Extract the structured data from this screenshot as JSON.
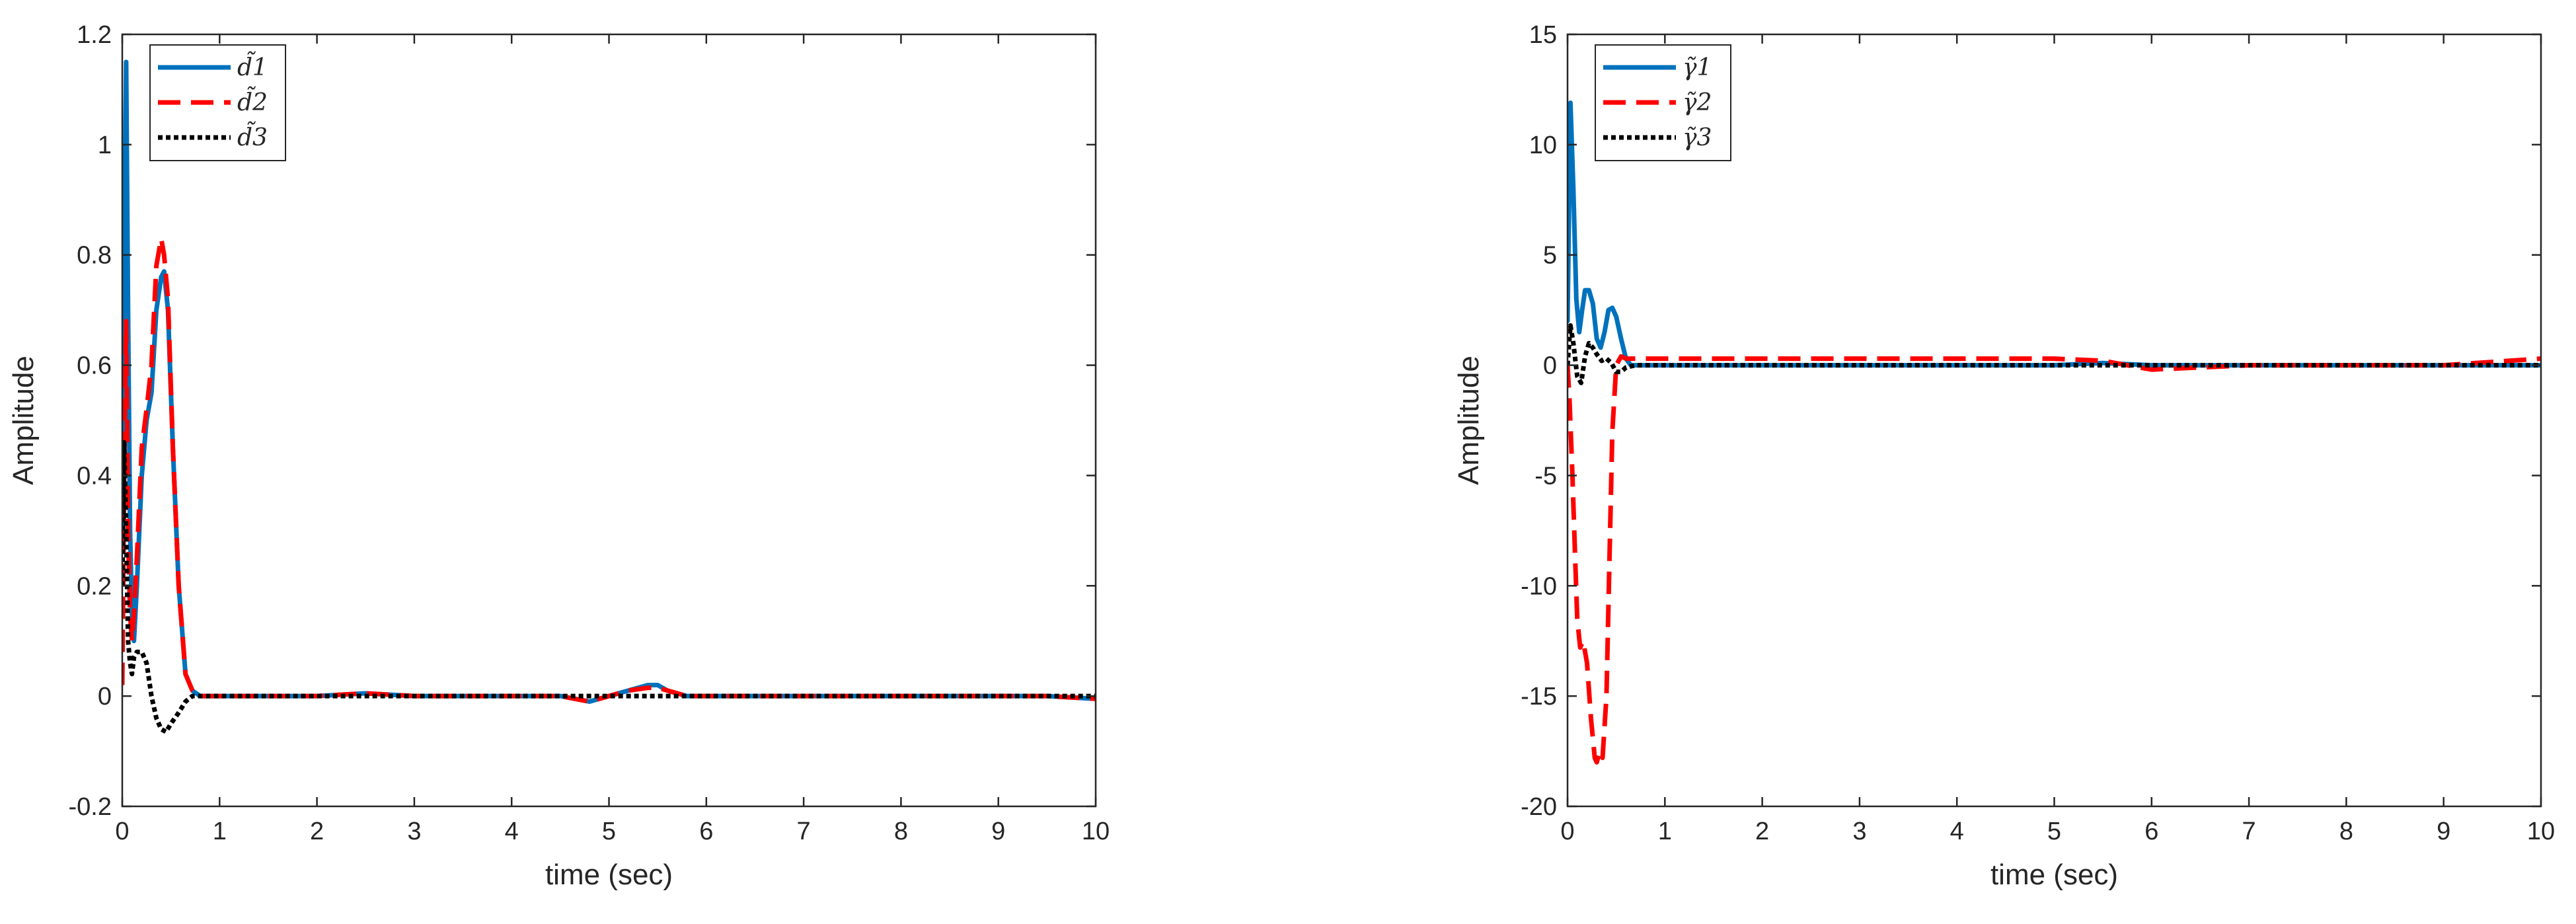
{
  "chart_data": [
    {
      "type": "line",
      "xlabel": "time (sec)",
      "ylabel": "Amplitude",
      "xlim": [
        0,
        10
      ],
      "ylim": [
        -0.2,
        1.2
      ],
      "xticks": [
        0,
        1,
        2,
        3,
        4,
        5,
        6,
        7,
        8,
        9,
        10
      ],
      "xtick_labels": [
        "0",
        "1",
        "2",
        "3",
        "4",
        "5",
        "6",
        "7",
        "8",
        "9",
        "10"
      ],
      "yticks": [
        -0.2,
        0,
        0.2,
        0.4,
        0.6,
        0.8,
        1,
        1.2
      ],
      "ytick_labels": [
        "-0.2",
        "0",
        "0.2",
        "0.4",
        "0.6",
        "0.8",
        "1",
        "1.2"
      ],
      "grid": false,
      "legend_position": "top-left",
      "series": [
        {
          "name": "d̃1",
          "color": "#0072BD",
          "style": "solid",
          "x": [
            0,
            0.02,
            0.04,
            0.06,
            0.08,
            0.1,
            0.12,
            0.15,
            0.2,
            0.25,
            0.3,
            0.35,
            0.4,
            0.43,
            0.47,
            0.52,
            0.58,
            0.65,
            0.72,
            0.8,
            1,
            1.5,
            2,
            2.5,
            3,
            3.5,
            4,
            4.5,
            4.8,
            5.0,
            5.2,
            5.4,
            5.5,
            5.6,
            5.8,
            6,
            6.5,
            7,
            7.5,
            8,
            8.5,
            9,
            9.5,
            10
          ],
          "y": [
            0.3,
            0.8,
            1.15,
            0.7,
            0.3,
            0.15,
            0.1,
            0.2,
            0.4,
            0.5,
            0.55,
            0.7,
            0.76,
            0.77,
            0.7,
            0.45,
            0.2,
            0.04,
            0.01,
            0.0,
            0.0,
            0.0,
            0.0,
            0.005,
            0.0,
            0.0,
            0.0,
            0.0,
            -0.01,
            0.0,
            0.01,
            0.02,
            0.02,
            0.01,
            0.0,
            0.0,
            0.0,
            0.0,
            0.0,
            0.0,
            0.0,
            0.0,
            0.0,
            -0.005
          ]
        },
        {
          "name": "d̃2",
          "color": "#FF0000",
          "style": "dashed",
          "x": [
            0,
            0.02,
            0.04,
            0.06,
            0.08,
            0.1,
            0.12,
            0.15,
            0.2,
            0.25,
            0.3,
            0.35,
            0.4,
            0.43,
            0.47,
            0.52,
            0.58,
            0.65,
            0.72,
            0.8,
            1,
            1.5,
            2,
            2.5,
            3,
            3.5,
            4,
            4.5,
            4.8,
            5.0,
            5.2,
            5.4,
            5.5,
            5.6,
            5.8,
            6,
            6.5,
            7,
            7.5,
            8,
            8.5,
            9,
            9.5,
            10
          ],
          "y": [
            0.02,
            0.4,
            0.68,
            0.3,
            0.15,
            0.1,
            0.15,
            0.25,
            0.45,
            0.52,
            0.6,
            0.78,
            0.83,
            0.8,
            0.72,
            0.45,
            0.2,
            0.04,
            0.01,
            0.0,
            0.0,
            0.0,
            0.0,
            0.005,
            0.0,
            0.0,
            0.0,
            0.0,
            -0.01,
            0.0,
            0.01,
            0.015,
            0.015,
            0.01,
            0.0,
            0.0,
            0.0,
            0.0,
            0.0,
            0.0,
            0.0,
            0.0,
            0.0,
            -0.005
          ]
        },
        {
          "name": "d̃3",
          "color": "#000000",
          "style": "dotted",
          "x": [
            0,
            0.02,
            0.04,
            0.06,
            0.08,
            0.1,
            0.12,
            0.15,
            0.2,
            0.25,
            0.3,
            0.35,
            0.4,
            0.45,
            0.5,
            0.58,
            0.65,
            0.72,
            0.8,
            1,
            1.5,
            2,
            2.5,
            3,
            3.5,
            4,
            4.5,
            5,
            5.5,
            6,
            6.5,
            7,
            7.5,
            8,
            8.5,
            9,
            9.5,
            10
          ],
          "y": [
            0.2,
            0.46,
            0.3,
            0.1,
            0.06,
            0.04,
            0.07,
            0.08,
            0.08,
            0.06,
            0.0,
            -0.04,
            -0.06,
            -0.065,
            -0.05,
            -0.03,
            -0.01,
            0.0,
            0.0,
            0.0,
            0.0,
            0.0,
            0.0,
            0.0,
            0.0,
            0.0,
            0.0,
            0.0,
            0.0,
            0.0,
            0.0,
            0.0,
            0.0,
            0.0,
            0.0,
            0.0,
            0.0,
            0.0
          ]
        }
      ]
    },
    {
      "type": "line",
      "xlabel": "time (sec)",
      "ylabel": "Amplitude",
      "xlim": [
        0,
        10
      ],
      "ylim": [
        -20,
        15
      ],
      "xticks": [
        0,
        1,
        2,
        3,
        4,
        5,
        6,
        7,
        8,
        9,
        10
      ],
      "xtick_labels": [
        "0",
        "1",
        "2",
        "3",
        "4",
        "5",
        "6",
        "7",
        "8",
        "9",
        "10"
      ],
      "yticks": [
        -20,
        -15,
        -10,
        -5,
        0,
        5,
        10,
        15
      ],
      "ytick_labels": [
        "-20",
        "-15",
        "-10",
        "-5",
        "0",
        "5",
        "10",
        "15"
      ],
      "grid": false,
      "legend_position": "top-left",
      "series": [
        {
          "name": "γ̃1",
          "color": "#0072BD",
          "style": "solid",
          "x": [
            0,
            0.03,
            0.06,
            0.09,
            0.12,
            0.15,
            0.18,
            0.22,
            0.26,
            0.3,
            0.34,
            0.38,
            0.42,
            0.46,
            0.5,
            0.55,
            0.6,
            0.65,
            0.7,
            0.8,
            1,
            2,
            3,
            4,
            5,
            5.5,
            6,
            7,
            8,
            9,
            10
          ],
          "y": [
            2,
            11.9,
            8,
            3,
            1.5,
            2.5,
            3.4,
            3.4,
            2.8,
            1.2,
            0.8,
            1.5,
            2.5,
            2.6,
            2.2,
            1.2,
            0.3,
            0.0,
            0.0,
            0.0,
            0.0,
            0.0,
            0.0,
            0.0,
            0.0,
            0.1,
            0.0,
            0.0,
            0.0,
            0.0,
            0.0
          ]
        },
        {
          "name": "γ̃2",
          "color": "#FF0000",
          "style": "dashed",
          "x": [
            0,
            0.02,
            0.05,
            0.08,
            0.1,
            0.13,
            0.16,
            0.2,
            0.24,
            0.28,
            0.3,
            0.33,
            0.36,
            0.4,
            0.43,
            0.46,
            0.5,
            0.55,
            0.6,
            0.7,
            0.8,
            1,
            2,
            3,
            4,
            5,
            5.5,
            6,
            7,
            8,
            9,
            10
          ],
          "y": [
            0,
            -1.5,
            -5,
            -9,
            -11.5,
            -12.8,
            -12.5,
            -13.5,
            -16,
            -17.8,
            -18,
            -17.5,
            -17.8,
            -15,
            -9,
            -3,
            0,
            0.4,
            0.3,
            0.3,
            0.3,
            0.3,
            0.3,
            0.3,
            0.3,
            0.3,
            0.2,
            -0.2,
            0.0,
            0.0,
            0.0,
            0.3
          ]
        },
        {
          "name": "γ̃3",
          "color": "#000000",
          "style": "dotted",
          "x": [
            0,
            0.03,
            0.06,
            0.1,
            0.14,
            0.18,
            0.22,
            0.26,
            0.3,
            0.35,
            0.4,
            0.45,
            0.5,
            0.55,
            0.6,
            0.7,
            0.8,
            1,
            2,
            3,
            4,
            5,
            6,
            7,
            8,
            9,
            10
          ],
          "y": [
            0,
            1.8,
            1.0,
            -0.5,
            -0.8,
            0.4,
            1.0,
            0.8,
            0.5,
            0.2,
            0.3,
            0.1,
            -0.3,
            -0.3,
            -0.1,
            0.0,
            0.0,
            0.0,
            0.0,
            0.0,
            0.0,
            0.0,
            0.0,
            0.0,
            0.0,
            0.0,
            0.0
          ]
        }
      ]
    }
  ]
}
